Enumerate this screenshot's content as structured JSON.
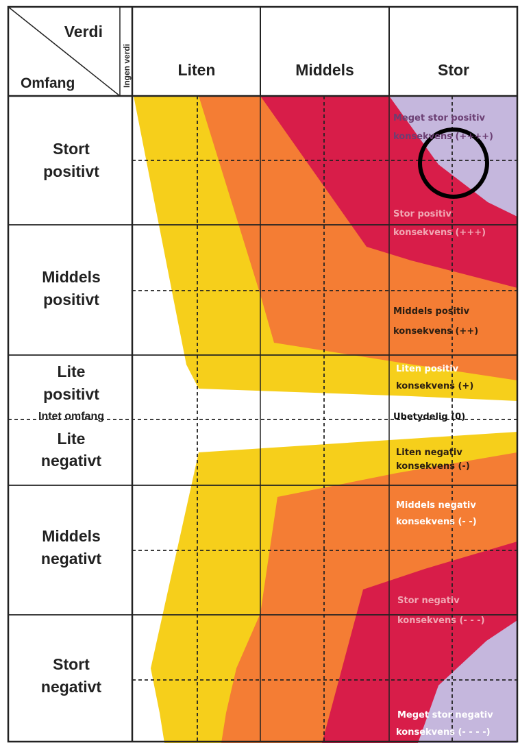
{
  "header": {
    "corner_top": "Verdi",
    "corner_bottom": "Omfang",
    "corner_vertical": "Ingen verdi",
    "columns": [
      "Liten",
      "Middels",
      "Stor"
    ]
  },
  "rows": {
    "stort_positivt": [
      "Stort",
      "positivt"
    ],
    "middels_positivt": [
      "Middels",
      "positivt"
    ],
    "lite_positivt": [
      "Lite",
      "positivt"
    ],
    "intet_omfang": "Intet omfang",
    "lite_negativt": [
      "Lite",
      "negativt"
    ],
    "middels_negativt": [
      "Middels",
      "negativt"
    ],
    "stort_negativt": [
      "Stort",
      "negativt"
    ]
  },
  "zones": {
    "meget_stor_positiv": [
      "Meget stor positiv",
      "konsekvens (++++)"
    ],
    "stor_positiv": [
      "Stor positiv",
      "konsekvens  (+++)"
    ],
    "middels_positiv": [
      "Middels positiv",
      "konsekvens (++)"
    ],
    "liten_positiv": [
      "Liten positiv",
      "konsekvens (+)"
    ],
    "ubetydelig": "Ubetydelig (0)",
    "liten_negativ": [
      "Liten negativ",
      "konsekvens (-)"
    ],
    "middels_negativ": [
      "Middels negativ",
      "konsekvens (- -)"
    ],
    "stor_negativ": [
      "Stor negativ",
      "konsekvens (- - -)"
    ],
    "meget_stor_negativ": [
      "Meget stor negativ",
      "konsekvens  (- - - -)"
    ]
  },
  "colors": {
    "yellow": "#f6cf1b",
    "orange": "#f47d34",
    "red": "#d81d49",
    "lavender": "#c5b7dd",
    "border": "#222222"
  }
}
